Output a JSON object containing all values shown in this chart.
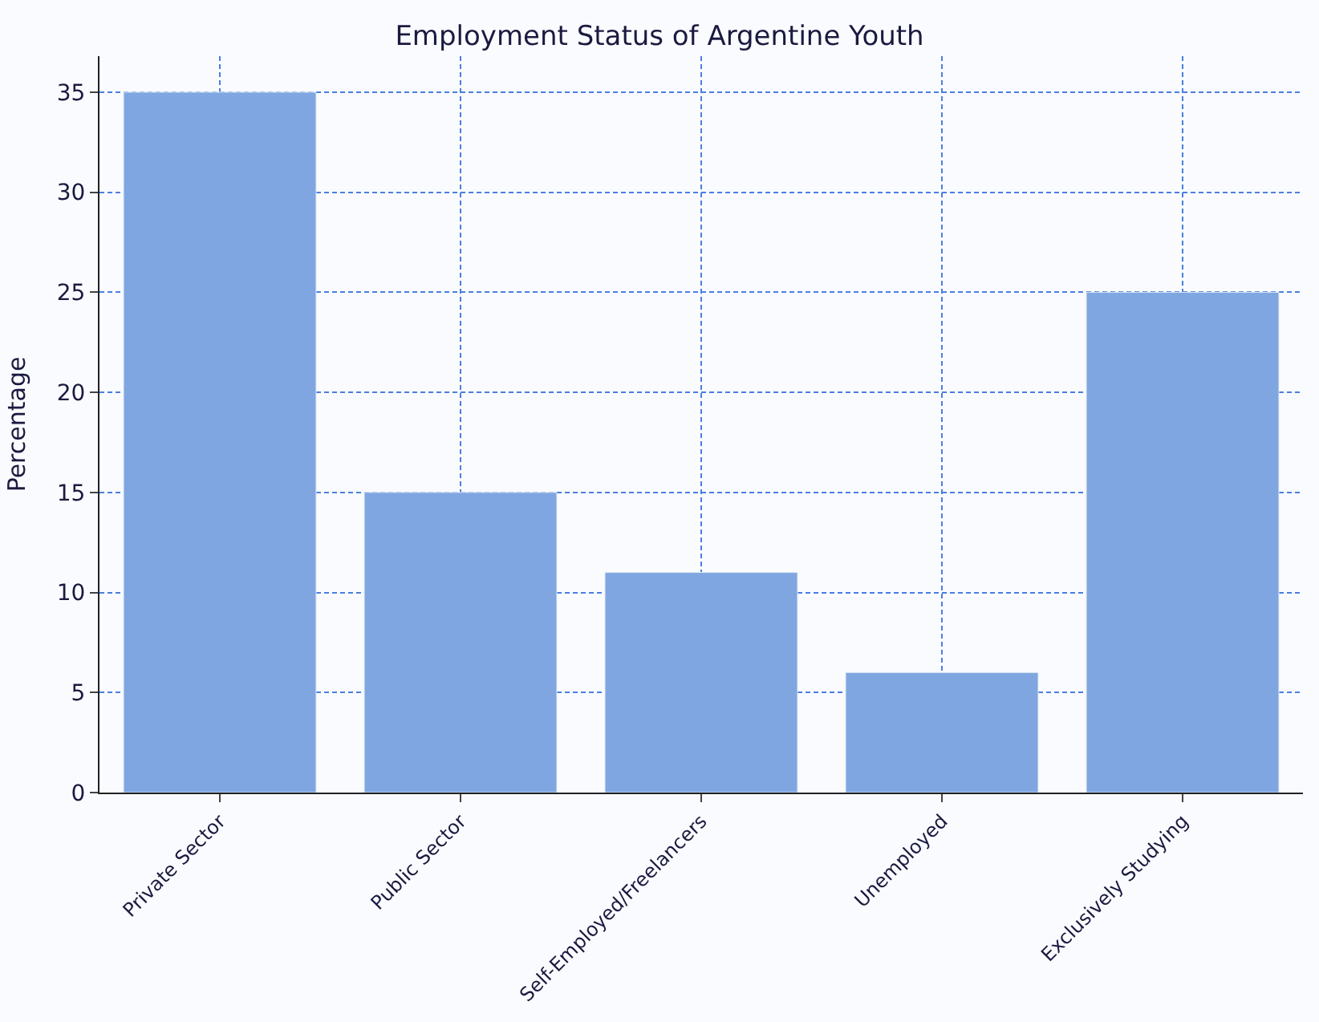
{
  "chart_data": {
    "type": "bar",
    "title": "Employment Status of Argentine Youth",
    "ylabel": "Percentage",
    "categories": [
      "Private Sector",
      "Public Sector",
      "Self-Employed/Freelancers",
      "Unemployed",
      "Exclusively Studying"
    ],
    "values": [
      35,
      15,
      11,
      6,
      25
    ],
    "color": "#7fa6e0",
    "ylim": [
      0,
      36.8
    ],
    "yticks": [
      0,
      5,
      10,
      15,
      20,
      25,
      30,
      35
    ],
    "grid": true
  }
}
